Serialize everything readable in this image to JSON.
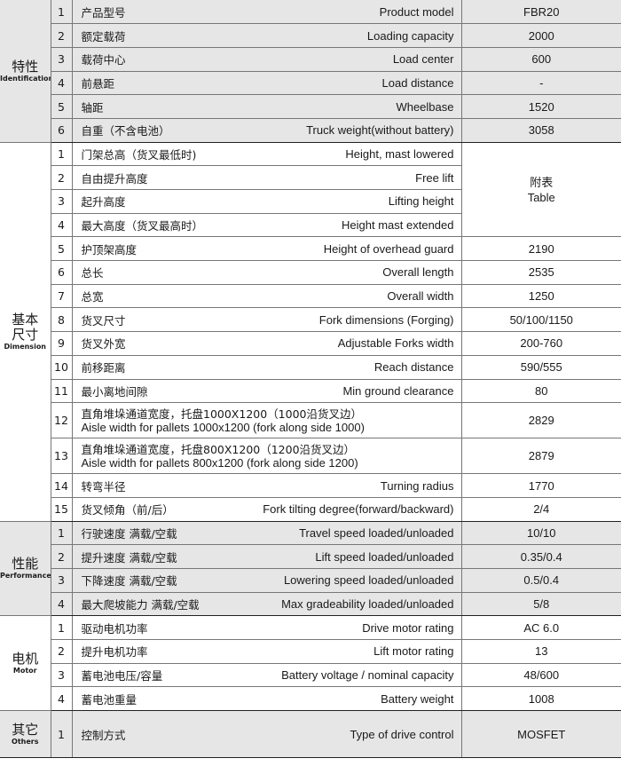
{
  "sections": [
    {
      "zh": "特性",
      "en": "Identification",
      "gray": true,
      "rows": [
        {
          "no": "1",
          "zh": "产品型号",
          "en": "Product model",
          "value": "FBR20"
        },
        {
          "no": "2",
          "zh": "额定载荷",
          "en": "Loading capacity",
          "value": "2000"
        },
        {
          "no": "3",
          "zh": "载荷中心",
          "en": "Load center",
          "value": "600"
        },
        {
          "no": "4",
          "zh": "前悬距",
          "en": "Load distance",
          "value": "-"
        },
        {
          "no": "5",
          "zh": "轴距",
          "en": "Wheelbase",
          "value": "1520"
        },
        {
          "no": "6",
          "zh": "自重（不含电池）",
          "en": "Truck weight(without battery)",
          "value": "3058"
        }
      ]
    },
    {
      "zh": "基本\n尺寸",
      "en": "Dimension",
      "gray": false,
      "rows": [
        {
          "no": "1",
          "zh": "门架总高（货叉最低时)",
          "en": "Height, mast lowered",
          "value": "附表\nTable",
          "rowspan": 4
        },
        {
          "no": "2",
          "zh": "自由提升高度",
          "en": "Free lift"
        },
        {
          "no": "3",
          "zh": "起升高度",
          "en": "Lifting height"
        },
        {
          "no": "4",
          "zh": "最大高度（货叉最高时）",
          "en": "Height mast extended"
        },
        {
          "no": "5",
          "zh": "护顶架高度",
          "en": "Height of overhead guard",
          "value": "2190"
        },
        {
          "no": "6",
          "zh": "总长",
          "en": "Overall length",
          "value": "2535"
        },
        {
          "no": "7",
          "zh": "总宽",
          "en": "Overall width",
          "value": "1250"
        },
        {
          "no": "8",
          "zh": "货叉尺寸",
          "en": "Fork dimensions (Forging)",
          "value": "50/100/1150"
        },
        {
          "no": "9",
          "zh": "货叉外宽",
          "en": "Adjustable Forks width",
          "value": "200-760"
        },
        {
          "no": "10",
          "zh": "前移距离",
          "en": "Reach distance",
          "value": "590/555"
        },
        {
          "no": "11",
          "zh": "最小离地间隙",
          "en": "Min ground clearance",
          "value": "80"
        },
        {
          "no": "12",
          "zh": "直角堆垛通道宽度，托盘1000X1200（1000沿货叉边）",
          "en": "Aisle width for pallets 1000x1200 (fork along side 1000)",
          "value": "2829",
          "stack": true
        },
        {
          "no": "13",
          "zh": "直角堆垛通道宽度，托盘800X1200（1200沿货叉边）",
          "en": "Aisle width for pallets 800x1200 (fork along side 1200)",
          "value": "2879",
          "stack": true
        },
        {
          "no": "14",
          "zh": "转弯半径",
          "en": "Turning radius",
          "value": "1770"
        },
        {
          "no": "15",
          "zh": "货叉倾角（前/后）",
          "en": "Fork tilting degree(forward/backward)",
          "value": "2/4"
        }
      ]
    },
    {
      "zh": "性能",
      "en": "Performance",
      "gray": true,
      "rows": [
        {
          "no": "1",
          "zh": "行驶速度  满载/空载",
          "en": "Travel speed  loaded/unloaded",
          "value": "10/10"
        },
        {
          "no": "2",
          "zh": "提升速度  满载/空载",
          "en": "Lift speed  loaded/unloaded",
          "value": "0.35/0.4"
        },
        {
          "no": "3",
          "zh": "下降速度  满载/空载",
          "en": "Lowering speed loaded/unloaded",
          "value": "0.5/0.4"
        },
        {
          "no": "4",
          "zh": "最大爬坡能力 满载/空载",
          "en": "Max gradeability loaded/unloaded",
          "value": "5/8"
        }
      ]
    },
    {
      "zh": "电机",
      "en": "Motor",
      "gray": false,
      "rows": [
        {
          "no": "1",
          "zh": "驱动电机功率",
          "en": "Drive motor rating",
          "value": "AC 6.0"
        },
        {
          "no": "2",
          "zh": "提升电机功率",
          "en": "Lift motor rating",
          "value": "13"
        },
        {
          "no": "3",
          "zh": "蓄电池电压/容量",
          "en": "Battery voltage / nominal capacity",
          "value": "48/600"
        },
        {
          "no": "4",
          "zh": "蓄电池重量",
          "en": "Battery weight",
          "value": "1008"
        }
      ]
    },
    {
      "zh": "其它",
      "en": "Others",
      "gray": true,
      "tall": true,
      "rows": [
        {
          "no": "1",
          "zh": "控制方式",
          "en": "Type of drive control",
          "value": "MOSFET"
        }
      ]
    }
  ]
}
